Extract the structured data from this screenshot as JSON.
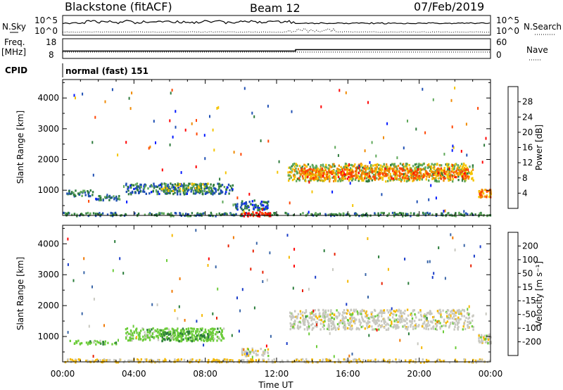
{
  "header": {
    "station": "Blackstone (fitACF)",
    "beam": "Beam 12",
    "date": "07/Feb/2019"
  },
  "param_panels": {
    "nsky": {
      "label": "N.Sky",
      "ticks": [
        "10^5",
        "10^0"
      ]
    },
    "nsearch": {
      "label": "N.Search",
      "ticks": [
        "10^5",
        "10^0"
      ]
    },
    "freq": {
      "label_line1": "Freq.",
      "label_line2": "[MHz]",
      "ticks": [
        "18",
        "8"
      ]
    },
    "nave": {
      "label": "Nave",
      "ticks": [
        "60",
        "0"
      ]
    },
    "cpid": {
      "label": "CPID",
      "value": "normal (fast) 151"
    }
  },
  "colors": {
    "power_scale": [
      "#0018ff",
      "#1f4fb4",
      "#2f7b3d",
      "#5fa85a",
      "#f5c400",
      "#f08a00",
      "#ff4500",
      "#ff0000"
    ],
    "velocity_scale": [
      "#1a3cc8",
      "#3a66a8",
      "#2a7d3a",
      "#6ccc3a",
      "#c8c8c0",
      "#f5b800",
      "#f07800",
      "#e82000",
      "#ff0000"
    ]
  },
  "chart_data": [
    {
      "type": "heatmap",
      "name": "power",
      "xlabel": "",
      "ylabel": "Slant Range [km]",
      "xlim": [
        0,
        24
      ],
      "ylim": [
        180,
        4600
      ],
      "yticks": [
        "1000",
        "2000",
        "3000",
        "4000"
      ],
      "xticks": [
        "00:00",
        "04:00",
        "08:00",
        "12:00",
        "16:00",
        "20:00",
        "00:00"
      ],
      "colorbar": {
        "label": "Power [dB]",
        "ticks": [
          "4",
          "8",
          "12",
          "16",
          "20",
          "24",
          "28"
        ],
        "range": [
          0,
          30
        ]
      },
      "regions": [
        {
          "t0": 0.0,
          "t1": 24.0,
          "r0": 190,
          "r1": 300,
          "value": 10
        },
        {
          "t0": 10.0,
          "t1": 11.7,
          "r0": 180,
          "r1": 330,
          "value": 29
        },
        {
          "t0": 0.2,
          "t1": 1.7,
          "r0": 830,
          "r1": 1030,
          "value": 9
        },
        {
          "t0": 1.8,
          "t1": 3.2,
          "r0": 700,
          "r1": 850,
          "value": 8
        },
        {
          "t0": 3.5,
          "t1": 9.5,
          "r0": 900,
          "r1": 1250,
          "value": 8
        },
        {
          "t0": 5.5,
          "t1": 8.3,
          "r0": 1000,
          "r1": 1250,
          "value": 13
        },
        {
          "t0": 9.5,
          "t1": 11.5,
          "r0": 380,
          "r1": 700,
          "value": 7
        },
        {
          "t0": 12.6,
          "t1": 23.0,
          "r0": 1320,
          "r1": 1900,
          "value": 15
        },
        {
          "t0": 13.2,
          "t1": 22.7,
          "r0": 1400,
          "r1": 1750,
          "value": 22
        },
        {
          "t0": 23.3,
          "t1": 24.0,
          "r0": 800,
          "r1": 1050,
          "value": 21
        }
      ]
    },
    {
      "type": "heatmap",
      "name": "velocity",
      "xlabel": "Time UT",
      "ylabel": "Slant Range [km]",
      "xlim": [
        0,
        24
      ],
      "ylim": [
        180,
        4600
      ],
      "yticks": [
        "1000",
        "2000",
        "3000",
        "4000"
      ],
      "xticks": [
        "00:00",
        "04:00",
        "08:00",
        "12:00",
        "16:00",
        "20:00",
        "00:00"
      ],
      "colorbar": {
        "label": "Velocity [m s⁻¹]",
        "ticks": [
          "200",
          "100",
          "50",
          "15",
          "-15",
          "-50",
          "-100",
          "-200"
        ],
        "range": [
          -250,
          250
        ]
      },
      "regions": [
        {
          "t0": 0.0,
          "t1": 24.0,
          "r0": 190,
          "r1": 300,
          "value": 30
        },
        {
          "t0": 0.3,
          "t1": 3.0,
          "r0": 780,
          "r1": 900,
          "value": -60
        },
        {
          "t0": 3.5,
          "t1": 9.0,
          "r0": 900,
          "r1": 1300,
          "value": -55
        },
        {
          "t0": 5.5,
          "t1": 8.3,
          "r0": 880,
          "r1": 1200,
          "value": -70
        },
        {
          "t0": 10.0,
          "t1": 11.5,
          "r0": 380,
          "r1": 650,
          "value": 0
        },
        {
          "t0": 12.7,
          "t1": 23.0,
          "r0": 1250,
          "r1": 1900,
          "value": 0
        },
        {
          "t0": 23.3,
          "t1": 24.0,
          "r0": 800,
          "r1": 1100,
          "value": 0
        }
      ]
    }
  ]
}
